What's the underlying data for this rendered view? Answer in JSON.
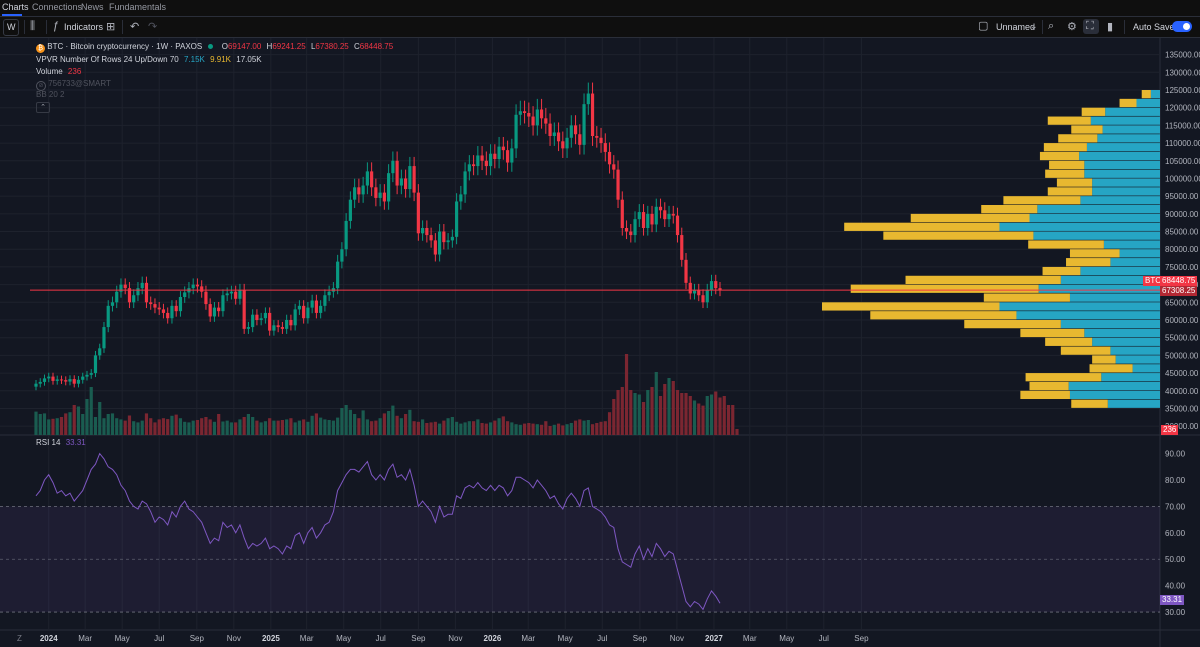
{
  "nav": {
    "tabs": [
      {
        "label": "Charts"
      },
      {
        "label": "Connections"
      },
      {
        "label": "News"
      },
      {
        "label": "Fundamentals"
      }
    ]
  },
  "toolbar": {
    "interval": "W",
    "indicators_label": "Indicators",
    "layout_name": "Unnamed",
    "autosave_label": "Auto Save",
    "autosave_on": true
  },
  "legend": {
    "symbol": "BTC · Bitcoin cryptocurrency · 1W · PAXOS",
    "o_label": "O",
    "o": "69147.00",
    "h_label": "H",
    "h": "69241.25",
    "l_label": "L",
    "l": "67380.25",
    "c_label": "C",
    "c": "68448.75",
    "vpvr": "VPVR Number Of Rows 24 Up/Down 70",
    "vpvr_up": "7.15K",
    "vpvr_down": "9.91K",
    "vpvr_total": "17.05K",
    "volume_label": "Volume",
    "volume_value": "236",
    "script_label": "756733@SMART",
    "bb_label": "BB 20 2",
    "rsi_label": "RSI 14",
    "rsi_value": "33.31"
  },
  "colors": {
    "up": "#089981",
    "down": "#f23645",
    "vol_up": "#1a5c50",
    "vol_down": "#7b2631",
    "vp_up": "#26a5c4",
    "vp_down": "#e8b830",
    "rsi_line": "#7e57c2",
    "rsi_band": "#7e57c21a",
    "price_line": "#f23645"
  },
  "chart_data": {
    "type": "candlestick",
    "price_axis": {
      "ticks": [
        30000,
        35000,
        40000,
        45000,
        50000,
        55000,
        60000,
        65000,
        70000,
        75000,
        80000,
        85000,
        90000,
        95000,
        100000,
        105000,
        110000,
        115000,
        120000,
        125000,
        130000,
        135000
      ],
      "ylim": [
        27500,
        138000
      ]
    },
    "price_tag": {
      "symbol": "BTC",
      "last": "68448.75",
      "other": "67308.25",
      "last_value": 68448.75
    },
    "volume_tag": "236",
    "x_axis": {
      "labels": [
        "Z",
        "2024",
        "Mar",
        "May",
        "Jul",
        "Sep",
        "Nov",
        "2025",
        "Mar",
        "May",
        "Jul",
        "Sep",
        "Nov",
        "2026",
        "Mar",
        "May",
        "Jul",
        "Sep",
        "Nov",
        "2027",
        "Mar",
        "May",
        "Jul",
        "Sep"
      ],
      "bold": [
        "2024",
        "2025",
        "2026",
        "2027"
      ]
    },
    "candles": {
      "start": "2023-12-11",
      "interval_days": 7,
      "closes": [
        42000,
        42500,
        43500,
        44000,
        42800,
        43200,
        43000,
        42600,
        43300,
        42000,
        43100,
        44000,
        44500,
        45000,
        50000,
        52000,
        58000,
        64000,
        65000,
        68000,
        70000,
        69000,
        65000,
        67000,
        69000,
        70500,
        65000,
        64500,
        63500,
        63000,
        62000,
        60500,
        64000,
        62500,
        66500,
        67800,
        69000,
        70000,
        69500,
        68000,
        64500,
        61000,
        63500,
        62500,
        67000,
        67500,
        68000,
        66000,
        68500,
        57500,
        58000,
        61500,
        60000,
        60500,
        62000,
        57000,
        58500,
        58000,
        57500,
        60000,
        58500,
        63000,
        64000,
        60500,
        63500,
        65500,
        62000,
        64000,
        67000,
        68000,
        69000,
        76500,
        80000,
        88000,
        94000,
        97500,
        95500,
        98000,
        102000,
        97500,
        94500,
        96000,
        93500,
        101500,
        105000,
        98000,
        100000,
        97000,
        103500,
        96000,
        84500,
        86000,
        84000,
        82500,
        78500,
        85000,
        82000,
        82500,
        83500,
        93500,
        95500,
        102000,
        104000,
        103500,
        106500,
        105000,
        103500,
        107000,
        105500,
        109000,
        108000,
        104500,
        108500,
        118000,
        119000,
        118500,
        117500,
        115000,
        119500,
        117000,
        115500,
        112000,
        113000,
        110500,
        108500,
        111500,
        115000,
        112500,
        109500,
        121000,
        124000,
        112000,
        111500,
        110000,
        107500,
        104000,
        102500,
        94000,
        86000,
        85000,
        84000,
        88500,
        90500,
        86000,
        90000,
        87000,
        92000,
        91000,
        88500,
        90000,
        89500,
        84000,
        77000,
        70500,
        67500,
        68500,
        67000,
        65000,
        68500,
        71000,
        69000,
        68448.75
      ]
    },
    "volume": {
      "max": 3000,
      "values": [
        780,
        700,
        720,
        520,
        540,
        560,
        600,
        720,
        760,
        1000,
        950,
        700,
        1200,
        1600,
        600,
        1100,
        560,
        700,
        720,
        560,
        520,
        480,
        650,
        460,
        420,
        480,
        720,
        560,
        420,
        520,
        560,
        530,
        640,
        680,
        560,
        440,
        420,
        480,
        500,
        560,
        600,
        520,
        440,
        700,
        450,
        480,
        420,
        420,
        520,
        600,
        700,
        600,
        480,
        420,
        460,
        560,
        480,
        480,
        500,
        520,
        560,
        420,
        480,
        520,
        440,
        640,
        720,
        580,
        520,
        500,
        480,
        580,
        900,
        1000,
        840,
        700,
        560,
        820,
        520,
        460,
        480,
        560,
        720,
        800,
        980,
        640,
        560,
        700,
        840,
        460,
        440,
        520,
        400,
        420,
        440,
        380,
        480,
        560,
        600,
        440,
        380,
        420,
        460,
        460,
        520,
        400,
        380,
        420,
        480,
        560,
        620,
        460,
        420,
        360,
        340,
        380,
        400,
        380,
        360,
        340,
        460,
        300,
        340,
        380,
        320,
        360,
        400,
        480,
        520,
        480,
        500,
        360,
        400,
        440,
        460,
        760,
        1200,
        1500,
        1600,
        2700,
        1500,
        1400,
        1350,
        1100,
        1500,
        1600,
        2100,
        1300,
        1700,
        1900,
        1800,
        1500,
        1400,
        1400,
        1300,
        1150,
        1050,
        980,
        1300,
        1350,
        1450,
        1250,
        1300,
        1000,
        1000,
        200
      ]
    },
    "vpvr_rows": [
      {
        "price": 36250,
        "up": 4000,
        "down": 2800
      },
      {
        "price": 38750,
        "up": 6900,
        "down": 3800
      },
      {
        "price": 41250,
        "up": 7000,
        "down": 3000
      },
      {
        "price": 43750,
        "up": 4500,
        "down": 5800
      },
      {
        "price": 46250,
        "up": 2100,
        "down": 3300
      },
      {
        "price": 48750,
        "up": 3400,
        "down": 1800
      },
      {
        "price": 51250,
        "up": 3800,
        "down": 3800
      },
      {
        "price": 53750,
        "up": 5200,
        "down": 3600
      },
      {
        "price": 56250,
        "up": 5800,
        "down": 4900
      },
      {
        "price": 58750,
        "up": 7600,
        "down": 7400
      },
      {
        "price": 61250,
        "up": 11000,
        "down": 11200
      },
      {
        "price": 63750,
        "up": 12300,
        "down": 13600
      },
      {
        "price": 66250,
        "up": 6900,
        "down": 6600
      },
      {
        "price": 68750,
        "up": 9300,
        "down": 14400
      },
      {
        "price": 71250,
        "up": 7600,
        "down": 11900
      },
      {
        "price": 73750,
        "up": 6100,
        "down": 2900
      },
      {
        "price": 76250,
        "up": 3800,
        "down": 3400
      },
      {
        "price": 78750,
        "up": 3100,
        "down": 3800
      },
      {
        "price": 81250,
        "up": 4300,
        "down": 5800
      },
      {
        "price": 83750,
        "up": 9700,
        "down": 11500
      },
      {
        "price": 86250,
        "up": 12300,
        "down": 11900
      },
      {
        "price": 88750,
        "up": 10000,
        "down": 9100
      },
      {
        "price": 91250,
        "up": 9400,
        "down": 4300
      },
      {
        "price": 93750,
        "up": 6100,
        "down": 5900
      },
      {
        "price": 96250,
        "up": 5200,
        "down": 3400
      },
      {
        "price": 98750,
        "up": 5200,
        "down": 2700
      },
      {
        "price": 101250,
        "up": 5800,
        "down": 3000
      },
      {
        "price": 103750,
        "up": 5800,
        "down": 2700
      },
      {
        "price": 106250,
        "up": 6200,
        "down": 3000
      },
      {
        "price": 108750,
        "up": 5600,
        "down": 3300
      },
      {
        "price": 111250,
        "up": 4800,
        "down": 3000
      },
      {
        "price": 113750,
        "up": 4400,
        "down": 2400
      },
      {
        "price": 116250,
        "up": 5300,
        "down": 3300
      },
      {
        "price": 118750,
        "up": 4200,
        "down": 1800
      },
      {
        "price": 121250,
        "up": 1800,
        "down": 1300
      },
      {
        "price": 123750,
        "up": 700,
        "down": 700
      }
    ],
    "rsi": {
      "ticks": [
        30,
        40,
        50,
        60,
        70,
        80,
        90
      ],
      "ylim": [
        27,
        94
      ],
      "overbought": 70,
      "oversold": 30,
      "middle": 50,
      "values": [
        74,
        76,
        80,
        82,
        79,
        75,
        76,
        74,
        75,
        72,
        74,
        76,
        80,
        84,
        86,
        90,
        88,
        85,
        84,
        82,
        78,
        76,
        72,
        70,
        69,
        72,
        71,
        68,
        64,
        66,
        65,
        63,
        68,
        66,
        70,
        72,
        69,
        68,
        66,
        64,
        60,
        56,
        58,
        57,
        64,
        62,
        63,
        60,
        63,
        58,
        54,
        56,
        55,
        56,
        58,
        54,
        55,
        54,
        52,
        55,
        54,
        59,
        60,
        56,
        60,
        62,
        58,
        60,
        63,
        64,
        68,
        76,
        79,
        82,
        84,
        84,
        83,
        85,
        87,
        82,
        80,
        82,
        80,
        84,
        86,
        81,
        82,
        80,
        84,
        78,
        70,
        72,
        70,
        68,
        64,
        70,
        66,
        67,
        67,
        74,
        73,
        77,
        78,
        77,
        79,
        77,
        76,
        78,
        76,
        78,
        77,
        74,
        76,
        81,
        81,
        80,
        79,
        77,
        80,
        78,
        76,
        73,
        74,
        71,
        69,
        73,
        75,
        73,
        70,
        76,
        77,
        70,
        69,
        68,
        66,
        63,
        62,
        54,
        49,
        48,
        47,
        52,
        55,
        50,
        54,
        51,
        56,
        54,
        51,
        53,
        52,
        46,
        40,
        34,
        32,
        34,
        33,
        31,
        35,
        38,
        36,
        33.31
      ]
    }
  }
}
